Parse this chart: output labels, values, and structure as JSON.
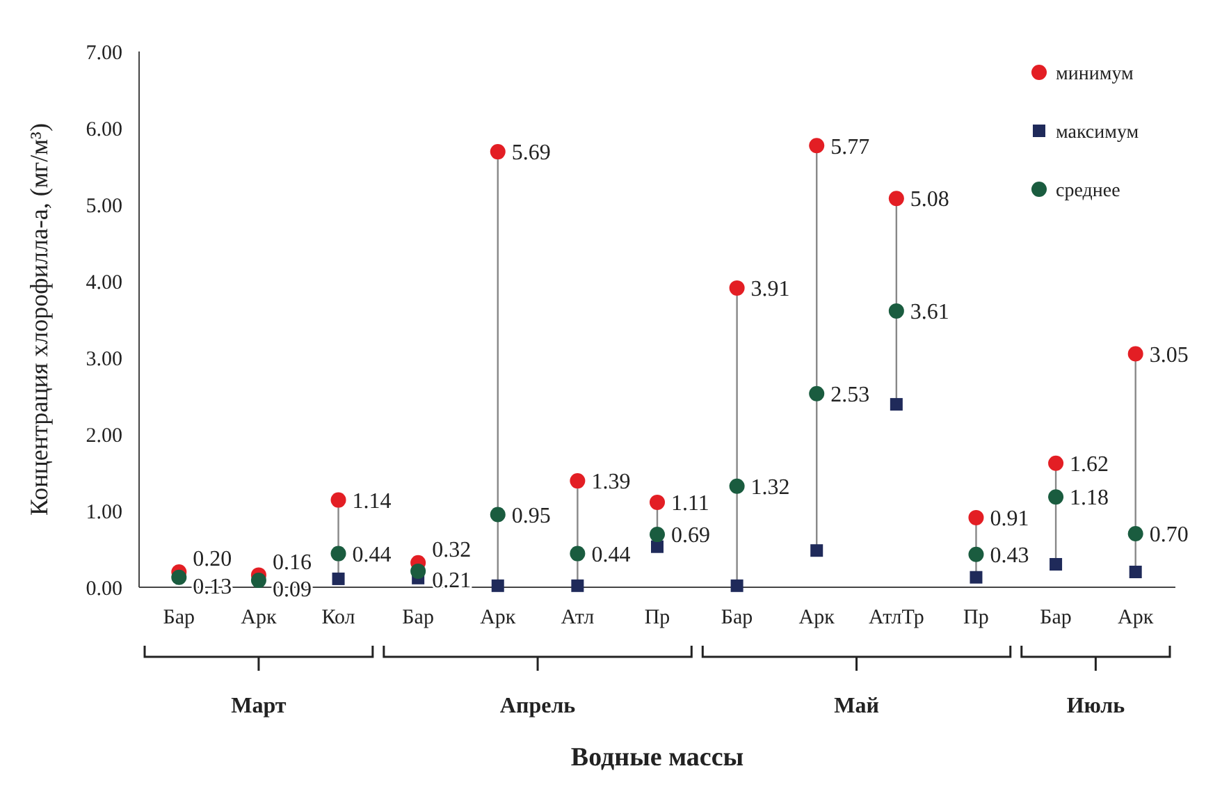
{
  "chart_data": {
    "type": "scatter",
    "xlabel": "Водные массы",
    "ylabel": "Концентрация хлорофилла-a, (мг/м³)",
    "categories": [
      "Бар",
      "Арк",
      "Кол",
      "Бар",
      "Арк",
      "Атл",
      "Пр",
      "Бар",
      "Арк",
      "АтлТр",
      "Пр",
      "Бар",
      "Арк"
    ],
    "annotations": [
      "Март",
      "Апрель",
      "Май",
      "Июль"
    ],
    "series": [
      {
        "name": "минимум",
        "color": "#e31e24",
        "marker": "circle",
        "values": [
          0.2,
          0.16,
          1.14,
          0.32,
          5.69,
          1.39,
          1.11,
          3.91,
          5.77,
          5.08,
          0.91,
          1.62,
          3.05
        ],
        "value_labels": [
          "0.20",
          "0.16",
          "1.14",
          "0.32",
          "5.69",
          "1.39",
          "1.11",
          "3.91",
          "5.77",
          "5.08",
          "0.91",
          "1.62",
          "3.05"
        ]
      },
      {
        "name": "максимум",
        "color": "#1f2a5a",
        "marker": "square",
        "values": [
          null,
          null,
          0.11,
          0.12,
          0.02,
          0.02,
          0.53,
          0.02,
          0.48,
          2.39,
          0.13,
          0.3,
          0.2
        ]
      },
      {
        "name": "среднее",
        "color": "#1a5c3f",
        "marker": "circle",
        "values": [
          0.13,
          0.09,
          0.44,
          0.21,
          0.95,
          0.44,
          0.69,
          1.32,
          2.53,
          3.61,
          0.43,
          1.18,
          0.7
        ],
        "value_labels": [
          "0.13",
          "0.09",
          "0.44",
          "0.21",
          "0.95",
          "0.44",
          "0.69",
          "1.32",
          "2.53",
          "3.61",
          "0.43",
          "1.18",
          "0.70"
        ]
      }
    ],
    "ylim": [
      0,
      7
    ],
    "yticks": [
      {
        "value": 0,
        "label": "0.00"
      },
      {
        "value": 1,
        "label": "1.00"
      },
      {
        "value": 2,
        "label": "2.00"
      },
      {
        "value": 3,
        "label": "3.00"
      },
      {
        "value": 4,
        "label": "4.00"
      },
      {
        "value": 5,
        "label": "5.00"
      },
      {
        "value": 6,
        "label": "6.00"
      },
      {
        "value": 7,
        "label": "7.00"
      }
    ],
    "legend": "top right"
  }
}
